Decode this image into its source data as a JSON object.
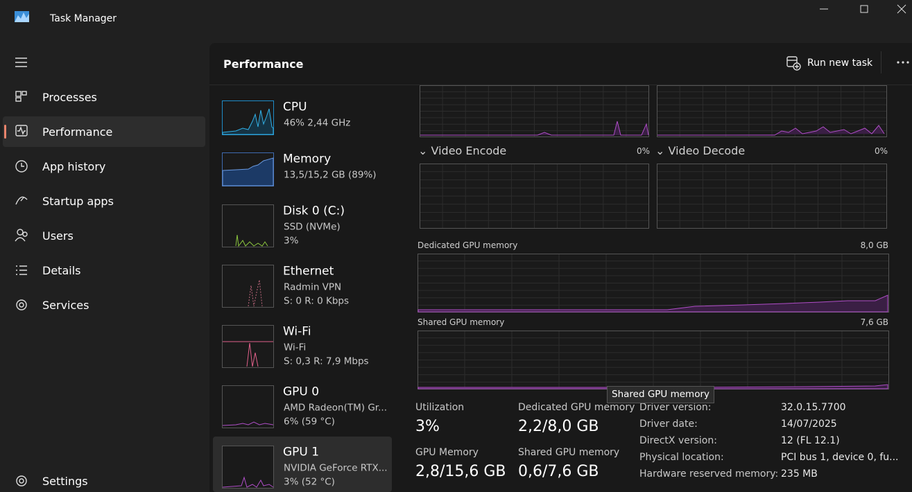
{
  "window": {
    "title": "Task Manager"
  },
  "nav": {
    "items": [
      "Processes",
      "Performance",
      "App history",
      "Startup apps",
      "Users",
      "Details",
      "Services"
    ],
    "settings": "Settings"
  },
  "header": {
    "title": "Performance",
    "run_new_task": "Run new task"
  },
  "devices": [
    {
      "name": "CPU",
      "lines": [
        "46% 2,44 GHz"
      ]
    },
    {
      "name": "Memory",
      "lines": [
        "13,5/15,2 GB (89%)"
      ]
    },
    {
      "name": "Disk 0 (C:)",
      "lines": [
        "SSD (NVMe)",
        "3%"
      ]
    },
    {
      "name": "Ethernet",
      "lines": [
        "Radmin VPN",
        "S: 0 R: 0 Kbps"
      ]
    },
    {
      "name": "Wi-Fi",
      "lines": [
        "Wi-Fi",
        "S: 0,3 R: 7,9 Mbps"
      ]
    },
    {
      "name": "GPU 0",
      "lines": [
        "AMD Radeon(TM) Gr...",
        "6% (59 °C)"
      ]
    },
    {
      "name": "GPU 1",
      "lines": [
        "NVIDIA GeForce RTX...",
        "3% (52 °C)"
      ]
    }
  ],
  "graphs": {
    "video_encode": {
      "label": "Video Encode",
      "value": "0%"
    },
    "video_decode": {
      "label": "Video Decode",
      "value": "0%"
    },
    "dedicated": {
      "label": "Dedicated GPU memory",
      "value": "8,0 GB"
    },
    "shared": {
      "label": "Shared GPU memory",
      "value": "7,6 GB"
    }
  },
  "tooltip": "Shared GPU memory",
  "stats": [
    {
      "label": "Utilization",
      "value": "3%"
    },
    {
      "label": "Dedicated GPU memory",
      "value": "2,2/8,0 GB"
    },
    {
      "label": "GPU Memory",
      "value": "2,8/15,6 GB"
    },
    {
      "label": "Shared GPU memory",
      "value": "0,6/7,6 GB"
    }
  ],
  "details": [
    {
      "label": "Driver version:",
      "value": "32.0.15.7700"
    },
    {
      "label": "Driver date:",
      "value": "14/07/2025"
    },
    {
      "label": "DirectX version:",
      "value": "12 (FL 12.1)"
    },
    {
      "label": "Physical location:",
      "value": "PCI bus 1, device 0, fu..."
    },
    {
      "label": "Hardware reserved memory:",
      "value": "235 MB"
    }
  ]
}
